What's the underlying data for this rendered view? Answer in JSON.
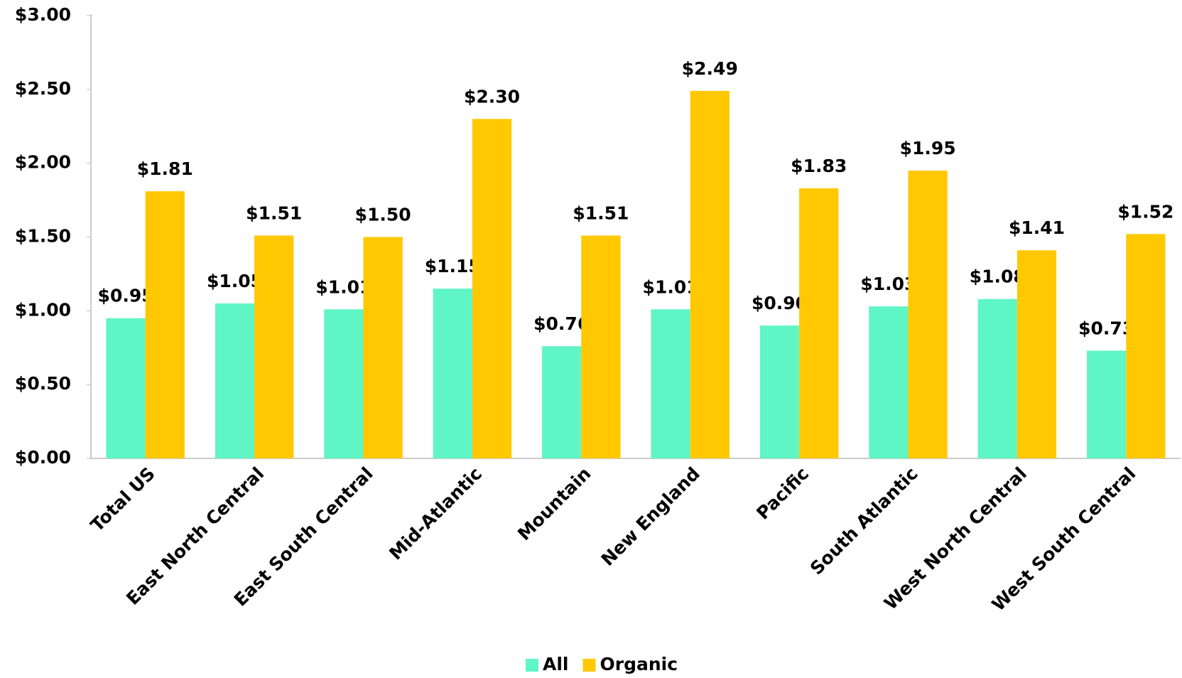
{
  "chart_data": {
    "type": "bar",
    "categories": [
      "Total US",
      "East North Central",
      "East South Central",
      "Mid-Atlantic",
      "Mountain",
      "New England",
      "Pacific",
      "South Atlantic",
      "West North Central",
      "West South Central"
    ],
    "series": [
      {
        "name": "All",
        "color": "#5ff5c4",
        "values": [
          0.95,
          1.05,
          1.01,
          1.15,
          0.76,
          1.01,
          0.9,
          1.03,
          1.08,
          0.73
        ],
        "value_labels": [
          "$0.95",
          "$1.05",
          "$1.01",
          "$1.15",
          "$0.76",
          "$1.01",
          "$0.90",
          "$1.03",
          "$1.08",
          "$0.73"
        ]
      },
      {
        "name": "Organic",
        "color": "#ffc800",
        "values": [
          1.81,
          1.51,
          1.5,
          2.3,
          1.51,
          2.49,
          1.83,
          1.95,
          1.41,
          1.52
        ],
        "value_labels": [
          "$1.81",
          "$1.51",
          "$1.50",
          "$2.30",
          "$1.51",
          "$2.49",
          "$1.83",
          "$1.95",
          "$1.41",
          "$1.52"
        ]
      }
    ],
    "ylim": [
      0,
      3
    ],
    "yticks": [
      {
        "value": 0,
        "label": "$0.00"
      },
      {
        "value": 0.5,
        "label": "$0.50"
      },
      {
        "value": 1,
        "label": "$1.00"
      },
      {
        "value": 1.5,
        "label": "$1.50"
      },
      {
        "value": 2,
        "label": "$2.00"
      },
      {
        "value": 2.5,
        "label": "$2.50"
      },
      {
        "value": 3,
        "label": "$3.00"
      }
    ],
    "grid": false,
    "legend": "bottom"
  }
}
